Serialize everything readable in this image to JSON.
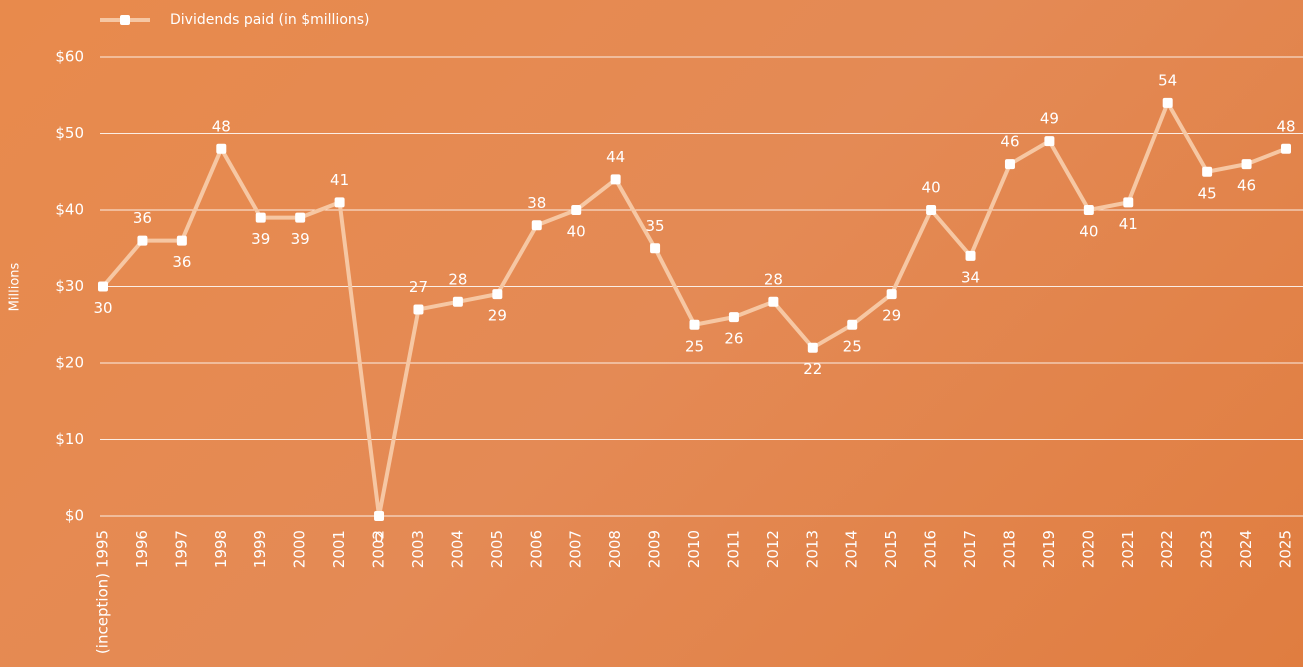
{
  "chart_data": {
    "type": "line",
    "y_axis_label": "Millions",
    "categories": [
      "(inception) 1995",
      "1996",
      "1997",
      "1998",
      "1999",
      "2000",
      "2001",
      "2002",
      "2003",
      "2004",
      "2005",
      "2006",
      "2007",
      "2008",
      "2009",
      "2010",
      "2011",
      "2012",
      "2013",
      "2014",
      "2015",
      "2016",
      "2017",
      "2018",
      "2019",
      "2020",
      "2021",
      "2022",
      "2023",
      "2024",
      "2025"
    ],
    "series": [
      {
        "name": "Dividends paid (in $millions)",
        "color": "#f6c7a3",
        "values": [
          30,
          36,
          36,
          48,
          39,
          39,
          41,
          0,
          27,
          28,
          29,
          38,
          40,
          44,
          35,
          25,
          26,
          28,
          22,
          25,
          29,
          40,
          34,
          46,
          49,
          40,
          41,
          54,
          45,
          46,
          48
        ]
      }
    ],
    "ylim": [
      0,
      60
    ],
    "yticks": [
      {
        "value": 0,
        "label": "$0"
      },
      {
        "value": 10,
        "label": "$10"
      },
      {
        "value": 20,
        "label": "$20"
      },
      {
        "value": 30,
        "label": "$30"
      },
      {
        "value": 40,
        "label": "$40"
      },
      {
        "value": 50,
        "label": "$50"
      },
      {
        "value": 60,
        "label": "$60"
      }
    ],
    "grid": true
  }
}
